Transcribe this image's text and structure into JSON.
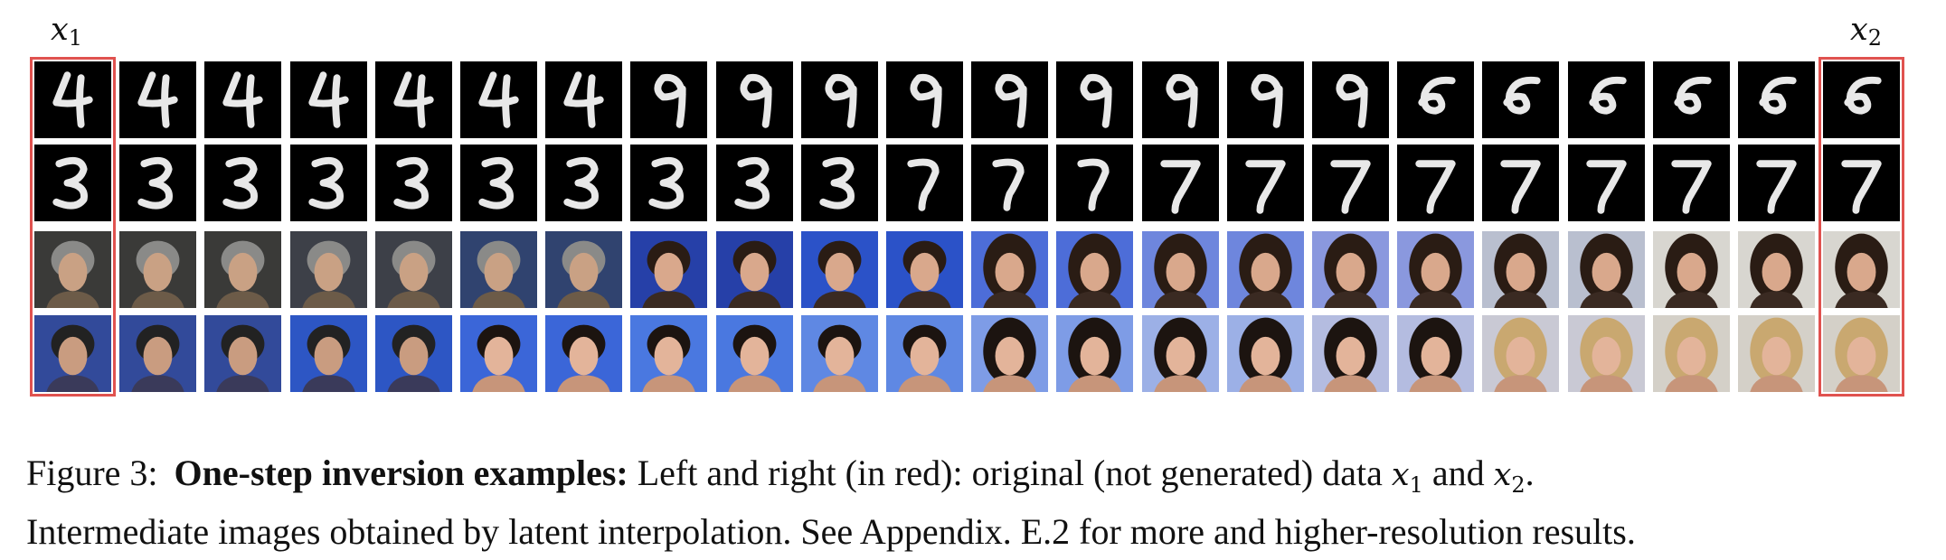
{
  "labels": {
    "x1": "x",
    "x1_sub": "1",
    "x2": "x",
    "x2_sub": "2"
  },
  "grid": {
    "columns": 22,
    "rows": [
      {
        "kind": "digit",
        "name": "mnist-4-to-9-row"
      },
      {
        "kind": "digit",
        "name": "mnist-3-to-7-row"
      },
      {
        "kind": "face",
        "name": "celeba-face-row-1"
      },
      {
        "kind": "face",
        "name": "celeba-face-row-2"
      }
    ],
    "highlight_color": "#e0524f"
  },
  "caption": {
    "figure_label": "Figure 3:",
    "bold_title": "One-step inversion examples:",
    "line1_rest": "Left and right (in red): original (not generated) data",
    "var1": "x",
    "var1_sub": "1",
    "and": "and",
    "var2": "x",
    "var2_sub": "2",
    "period": ".",
    "line2": "Intermediate images obtained by latent interpolation. See Appendix. E.2 for more and higher-resolution results."
  }
}
